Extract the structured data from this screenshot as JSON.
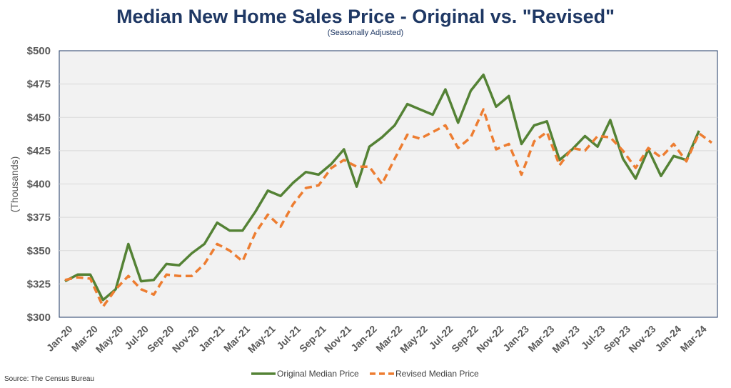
{
  "title": "Median New Home Sales Price - Original vs. \"Revised\"",
  "subtitle": "(Seasonally Adjusted)",
  "source": "Source: The Census Bureau",
  "chart_data": {
    "type": "line",
    "ylabel": "(Thousands)",
    "ylim": [
      300,
      500
    ],
    "yticks": [
      300,
      325,
      350,
      375,
      400,
      425,
      450,
      475,
      500
    ],
    "ytick_labels": [
      "$300",
      "$325",
      "$350",
      "$375",
      "$400",
      "$425",
      "$450",
      "$475",
      "$500"
    ],
    "xtick_labels": [
      "Jan-20",
      "Mar-20",
      "May-20",
      "Jul-20",
      "Sep-20",
      "Nov-20",
      "Jan-21",
      "Mar-21",
      "May-21",
      "Jul-21",
      "Sep-21",
      "Nov-21",
      "Jan-22",
      "Mar-22",
      "May-22",
      "Jul-22",
      "Sep-22",
      "Nov-22",
      "Jan-23",
      "Mar-23",
      "May-23",
      "Jul-23",
      "Sep-23",
      "Nov-23",
      "Jan-24",
      "Mar-24"
    ],
    "x": [
      "Jan-20",
      "Feb-20",
      "Mar-20",
      "Apr-20",
      "May-20",
      "Jun-20",
      "Jul-20",
      "Aug-20",
      "Sep-20",
      "Oct-20",
      "Nov-20",
      "Dec-20",
      "Jan-21",
      "Feb-21",
      "Mar-21",
      "Apr-21",
      "May-21",
      "Jun-21",
      "Jul-21",
      "Aug-21",
      "Sep-21",
      "Oct-21",
      "Nov-21",
      "Dec-21",
      "Jan-22",
      "Feb-22",
      "Mar-22",
      "Apr-22",
      "May-22",
      "Jun-22",
      "Jul-22",
      "Aug-22",
      "Sep-22",
      "Oct-22",
      "Nov-22",
      "Dec-22",
      "Jan-23",
      "Feb-23",
      "Mar-23",
      "Apr-23",
      "May-23",
      "Jun-23",
      "Jul-23",
      "Aug-23",
      "Sep-23",
      "Oct-23",
      "Nov-23",
      "Dec-23",
      "Jan-24",
      "Feb-24",
      "Mar-24",
      "Apr-24"
    ],
    "grid": true,
    "legend_position": "bottom",
    "series": [
      {
        "name": "Original Median Price",
        "color": "#548235",
        "style": "solid",
        "values": [
          327,
          332,
          332,
          313,
          321,
          355,
          327,
          328,
          340,
          339,
          348,
          355,
          371,
          365,
          365,
          379,
          395,
          391,
          401,
          409,
          407,
          415,
          426,
          398,
          428,
          435,
          444,
          460,
          456,
          452,
          471,
          446,
          470,
          482,
          458,
          466,
          430,
          444,
          447,
          418,
          426,
          436,
          428,
          448,
          419,
          404,
          426,
          406,
          421,
          418,
          440,
          null
        ]
      },
      {
        "name": "Revised Median Price",
        "color": "#ed7d31",
        "style": "dashed",
        "values": [
          328,
          330,
          329,
          308,
          321,
          331,
          321,
          317,
          332,
          331,
          331,
          340,
          355,
          350,
          342,
          363,
          377,
          368,
          385,
          397,
          399,
          412,
          418,
          413,
          413,
          400,
          419,
          437,
          434,
          439,
          444,
          427,
          435,
          456,
          426,
          430,
          407,
          432,
          439,
          414,
          427,
          425,
          436,
          435,
          425,
          412,
          427,
          420,
          430,
          417,
          438,
          431
        ]
      }
    ]
  }
}
